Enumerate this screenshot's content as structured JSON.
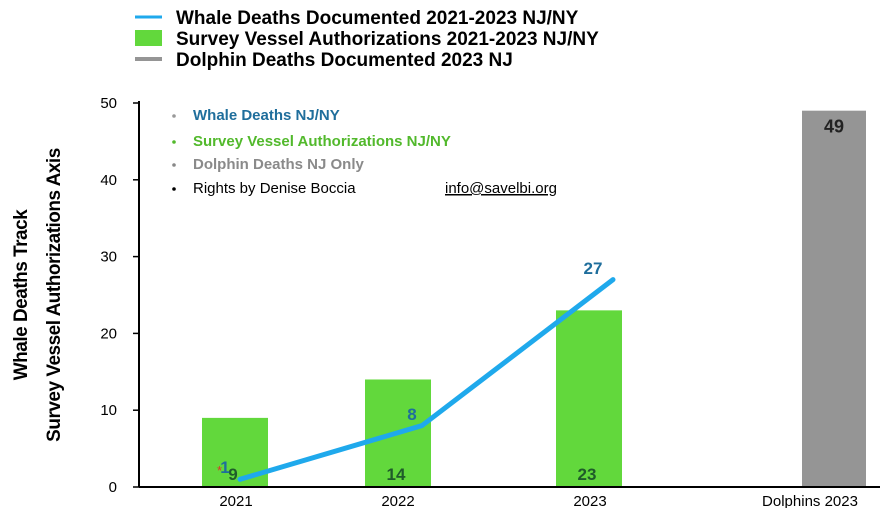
{
  "colors": {
    "whale_line": "#1fa9ec",
    "whale_text": "#1f6e9c",
    "survey_bar": "#62d83c",
    "survey_text": "#52b92c",
    "dolphin_bar": "#959595",
    "dolphin_text": "#8a8a8a",
    "bar_label_text": "#1f5c2a",
    "asterisk": "#e0312a",
    "axis": "#000000"
  },
  "legend_top": [
    {
      "marker": "line",
      "label": "Whale Deaths Documented 2021-2023 NJ/NY"
    },
    {
      "marker": "box",
      "label": "Survey Vessel Authorizations 2021-2023  NJ/NY"
    },
    {
      "marker": "line-gray",
      "label": "Dolphin Deaths Documented 2023 NJ"
    }
  ],
  "notes": [
    {
      "text": "Whale Deaths NJ/NY",
      "style": "whale"
    },
    {
      "text": "Survey Vessel Authorizations NJ/NY",
      "style": "survey"
    },
    {
      "text": "Dolphin Deaths NJ Only",
      "style": "dolphin"
    },
    {
      "text": "Rights by Denise Boccia ",
      "link": "info@savelbi.org",
      "style": "plain"
    }
  ],
  "chart_data": {
    "type": "bar",
    "ylabel": [
      "Whale Deaths Track",
      "Survey Vessel Authorizations Axis"
    ],
    "xlabel": "",
    "ylim": [
      0,
      50
    ],
    "yticks": [
      0,
      10,
      20,
      30,
      40,
      50
    ],
    "categories": [
      "2021",
      "2022",
      "2023",
      "Dolphins 2023"
    ],
    "series": [
      {
        "name": "Survey Vessel Authorizations NJ/NY",
        "kind": "bar",
        "values": [
          9,
          14,
          23,
          null
        ],
        "labels": [
          "9",
          "14",
          "23",
          null
        ],
        "asterisk_on": "2021"
      },
      {
        "name": "Whale Deaths NJ/NY",
        "kind": "line",
        "values": [
          1,
          8,
          27,
          null
        ],
        "labels": [
          "1",
          "8",
          "27",
          null
        ]
      },
      {
        "name": "Dolphin Deaths NJ Only",
        "kind": "bar",
        "values": [
          null,
          null,
          null,
          49
        ],
        "labels": [
          null,
          null,
          null,
          "49"
        ]
      }
    ],
    "grid": false,
    "legend_position": "top"
  }
}
